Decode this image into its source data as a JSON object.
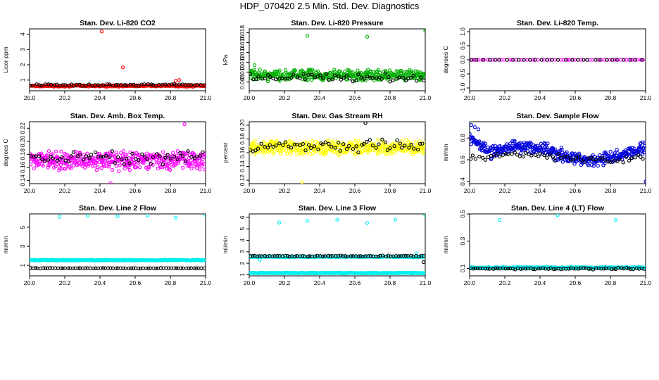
{
  "figure": {
    "title": "HDP_070420  2.5 Min. Std. Dev. Diagnostics"
  },
  "chart_data": [
    {
      "type": "scatter",
      "title": "Stan. Dev. Li-820 CO2",
      "xlabel": "",
      "ylabel": "Licor ppm",
      "xlim": [
        20.0,
        21.0
      ],
      "ylim": [
        0.3,
        4.35
      ],
      "xticks": [
        20.0,
        20.2,
        20.4,
        20.6,
        20.8,
        21.0
      ],
      "xtick_labels": [
        "20.0",
        "20.2",
        "20.4",
        "20.6",
        "20.8",
        "21.0"
      ],
      "yticks": [
        1,
        2,
        3,
        4
      ],
      "ytick_labels": [
        "1",
        "2",
        "3",
        "4"
      ],
      "series": [
        {
          "name": "dense",
          "color": "#ff0000",
          "n": 240,
          "base": 0.62,
          "spread": 0.06,
          "extra": [
            [
              20.41,
              4.18
            ],
            [
              20.53,
              1.83
            ],
            [
              20.83,
              0.95
            ],
            [
              20.85,
              1.0
            ]
          ]
        },
        {
          "name": "black",
          "color": "#000000",
          "n": 60,
          "base": 0.68,
          "spread": 0.08,
          "extra": []
        }
      ]
    },
    {
      "type": "scatter",
      "title": "Stan. Dev. Li-820 Pressure",
      "xlabel": "",
      "ylabel": "kPa",
      "xlim": [
        20.0,
        21.0
      ],
      "ylim": [
        0.0062,
        0.0188
      ],
      "xticks": [
        20.0,
        20.2,
        20.4,
        20.6,
        20.8,
        21.0
      ],
      "xtick_labels": [
        "20.0",
        "20.2",
        "20.4",
        "20.6",
        "20.8",
        "21.0"
      ],
      "yticks": [
        0.008,
        0.01,
        0.012,
        0.014,
        0.016,
        0.018
      ],
      "ytick_labels": [
        "0.008",
        "0.010",
        "0.012",
        "0.014",
        "0.016",
        "0.018"
      ],
      "series": [
        {
          "name": "dense",
          "color": "#00b000",
          "n": 380,
          "base": 0.0094,
          "spread": 0.0013,
          "extra": [
            [
              20.33,
              0.0174
            ],
            [
              20.67,
              0.0172
            ],
            [
              21.0,
              0.0184
            ],
            [
              20.03,
              0.0114
            ]
          ]
        },
        {
          "name": "black",
          "color": "#000000",
          "n": 60,
          "base": 0.0088,
          "spread": 0.001,
          "extra": []
        }
      ]
    },
    {
      "type": "scatter",
      "title": "Stan. Dev. Li-820 Temp.",
      "xlabel": "",
      "ylabel": "degrees C",
      "xlim": [
        20.0,
        21.0
      ],
      "ylim": [
        -1.1,
        1.1
      ],
      "xticks": [
        20.0,
        20.2,
        20.4,
        20.6,
        20.8,
        21.0
      ],
      "xtick_labels": [
        "20.0",
        "20.2",
        "20.4",
        "20.6",
        "20.8",
        "21.0"
      ],
      "yticks": [
        -1.0,
        -0.5,
        0.0,
        0.5,
        1.0
      ],
      "ytick_labels": [
        "-1.0",
        "-0.5",
        "0.0",
        "0.5",
        "1.0"
      ],
      "series": [
        {
          "name": "dense",
          "color": "#ff00ff",
          "n": 62,
          "base": 0.0,
          "spread": 0.0,
          "extra": []
        },
        {
          "name": "black",
          "color": "#000000",
          "n": 30,
          "base": 0.0,
          "spread": 0.0,
          "extra": []
        }
      ]
    },
    {
      "type": "scatter",
      "title": "Stan. Dev. Amb. Box Temp.",
      "xlabel": "",
      "ylabel": "degrees C",
      "xlim": [
        20.0,
        21.0
      ],
      "ylim": [
        0.135,
        0.23
      ],
      "xticks": [
        20.0,
        20.2,
        20.4,
        20.6,
        20.8,
        21.0
      ],
      "xtick_labels": [
        "20.0",
        "20.2",
        "20.4",
        "20.6",
        "20.8",
        "21.0"
      ],
      "yticks": [
        0.14,
        0.16,
        0.18,
        0.2,
        0.22
      ],
      "ytick_labels": [
        "0.14",
        "0.16",
        "0.18",
        "0.20",
        "0.22"
      ],
      "series": [
        {
          "name": "dense",
          "color": "#ff00ff",
          "n": 420,
          "base": 0.17,
          "spread": 0.016,
          "extra": [
            [
              20.88,
              0.226
            ],
            [
              20.46,
              0.136
            ]
          ]
        },
        {
          "name": "black",
          "color": "#000000",
          "n": 60,
          "base": 0.175,
          "spread": 0.012,
          "extra": []
        }
      ]
    },
    {
      "type": "scatter",
      "title": "Stan. Dev. Gas Stream RH",
      "xlabel": "",
      "ylabel": "percent",
      "xlim": [
        20.0,
        21.0
      ],
      "ylim": [
        0.115,
        0.205
      ],
      "xticks": [
        20.0,
        20.2,
        20.4,
        20.6,
        20.8,
        21.0
      ],
      "xtick_labels": [
        "20.0",
        "20.2",
        "20.4",
        "20.6",
        "20.8",
        "21.0"
      ],
      "yticks": [
        0.12,
        0.14,
        0.16,
        0.18,
        0.2
      ],
      "ytick_labels": [
        "0.12",
        "0.14",
        "0.16",
        "0.18",
        "0.20"
      ],
      "series": [
        {
          "name": "dense",
          "color": "#ffff00",
          "n": 420,
          "base": 0.168,
          "spread": 0.012,
          "extra": [
            [
              20.3,
              0.117
            ]
          ]
        },
        {
          "name": "black",
          "color": "#000000",
          "n": 60,
          "base": 0.17,
          "spread": 0.011,
          "extra": [
            [
              20.66,
              0.203
            ]
          ]
        }
      ]
    },
    {
      "type": "scatter",
      "title": "Stan. Dev. Sample Flow",
      "xlabel": "",
      "ylabel": "ml/min",
      "xlim": [
        20.0,
        21.0
      ],
      "ylim": [
        0.38,
        0.95
      ],
      "xticks": [
        20.0,
        20.2,
        20.4,
        20.6,
        20.8,
        21.0
      ],
      "xtick_labels": [
        "20.0",
        "20.2",
        "20.4",
        "20.6",
        "20.8",
        "21.0"
      ],
      "yticks": [
        0.4,
        0.6,
        0.8
      ],
      "ytick_labels": [
        "0.4",
        "0.6",
        "0.8"
      ],
      "series": [
        {
          "name": "dense",
          "color": "#0000dd",
          "n": 420,
          "base": 0.66,
          "spread": 0.07,
          "extra": [
            [
              20.01,
              0.92
            ],
            [
              20.03,
              0.9
            ],
            [
              20.05,
              0.88
            ],
            [
              21.0,
              0.4
            ]
          ]
        },
        {
          "name": "black",
          "color": "#000000",
          "n": 60,
          "base": 0.62,
          "spread": 0.04,
          "extra": []
        }
      ]
    },
    {
      "type": "scatter",
      "title": "Stan. Dev. Line 2 Flow",
      "xlabel": "",
      "ylabel": "ml/min",
      "xlim": [
        20.0,
        21.0
      ],
      "ylim": [
        -0.1,
        6.4
      ],
      "xticks": [
        20.0,
        20.2,
        20.4,
        20.6,
        20.8,
        21.0
      ],
      "xtick_labels": [
        "20.0",
        "20.2",
        "20.4",
        "20.6",
        "20.8",
        "21.0"
      ],
      "yticks": [
        1,
        3,
        5
      ],
      "ytick_labels": [
        "1",
        "3",
        "5"
      ],
      "series": [
        {
          "name": "dense",
          "color": "#00eeee",
          "n": 300,
          "base": 1.55,
          "spread": 0.06,
          "extra": [
            [
              20.17,
              6.1
            ],
            [
              20.33,
              6.2
            ],
            [
              20.5,
              6.15
            ],
            [
              20.67,
              6.25
            ],
            [
              20.83,
              6.0
            ],
            [
              21.0,
              6.3
            ]
          ]
        },
        {
          "name": "black",
          "color": "#000000",
          "n": 70,
          "base": 0.7,
          "spread": 0.03,
          "extra": []
        }
      ]
    },
    {
      "type": "scatter",
      "title": "Stan. Dev. Line 3 Flow",
      "xlabel": "",
      "ylabel": "ml/min",
      "xlim": [
        20.0,
        21.0
      ],
      "ylim": [
        0.9,
        6.3
      ],
      "xticks": [
        20.0,
        20.2,
        20.4,
        20.6,
        20.8,
        21.0
      ],
      "xtick_labels": [
        "20.0",
        "20.2",
        "20.4",
        "20.6",
        "20.8",
        "21.0"
      ],
      "yticks": [
        1,
        2,
        3,
        4,
        5,
        6
      ],
      "ytick_labels": [
        "1",
        "2",
        "3",
        "4",
        "5",
        "6"
      ],
      "series": [
        {
          "name": "dense",
          "color": "#00eeee",
          "n": 300,
          "base": 1.15,
          "spread": 0.04,
          "extra": [
            [
              20.17,
              5.55
            ],
            [
              20.33,
              5.7
            ],
            [
              20.5,
              5.8
            ],
            [
              20.67,
              5.5
            ],
            [
              20.83,
              5.8
            ],
            [
              21.0,
              6.2
            ],
            [
              20.95,
              2.85
            ],
            [
              20.06,
              2.3
            ]
          ]
        },
        {
          "name": "dense-upper",
          "color": "#00eeee",
          "n": 120,
          "base": 2.55,
          "spread": 0.05,
          "extra": []
        },
        {
          "name": "black",
          "color": "#000000",
          "n": 70,
          "base": 2.62,
          "spread": 0.06,
          "extra": [
            [
              20.99,
              2.1
            ]
          ]
        }
      ]
    },
    {
      "type": "scatter",
      "title": "Stan. Dev. Line 4 (LT) Flow",
      "xlabel": "",
      "ylabel": "ml/min",
      "xlim": [
        20.0,
        21.0
      ],
      "ylim": [
        0.045,
        0.5
      ],
      "xticks": [
        20.0,
        20.2,
        20.4,
        20.6,
        20.8,
        21.0
      ],
      "xtick_labels": [
        "20.0",
        "20.2",
        "20.4",
        "20.6",
        "20.8",
        "21.0"
      ],
      "yticks": [
        0.1,
        0.3,
        0.5
      ],
      "ytick_labels": [
        "0.1",
        "0.3",
        "0.5"
      ],
      "series": [
        {
          "name": "dense",
          "color": "#00eeee",
          "n": 300,
          "base": 0.105,
          "spread": 0.006,
          "extra": [
            [
              20.17,
              0.455
            ],
            [
              20.5,
              0.49
            ],
            [
              20.83,
              0.455
            ]
          ]
        },
        {
          "name": "black",
          "color": "#000000",
          "n": 70,
          "base": 0.098,
          "spread": 0.008,
          "extra": []
        }
      ]
    }
  ]
}
